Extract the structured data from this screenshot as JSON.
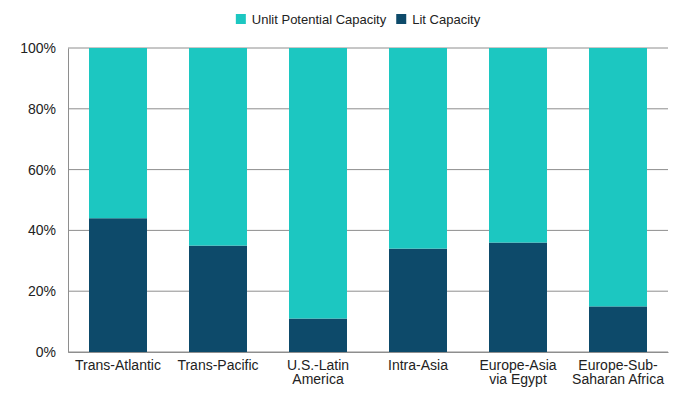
{
  "chart_data": {
    "type": "bar",
    "stacked": true,
    "grid": true,
    "legend": "top",
    "categories": [
      "Trans-Atlantic",
      "Trans-Pacific",
      "U.S.-Latin America",
      "Intra-Asia",
      "Europe-Asia via Egypt",
      "Europe-Sub-Saharan Africa"
    ],
    "series": [
      {
        "name": "Lit Capacity",
        "color": "#0d4a6a",
        "values": [
          44,
          35,
          11,
          34,
          36,
          15
        ]
      },
      {
        "name": "Unlit Potential Capacity",
        "color": "#1cc7c1",
        "values": [
          56,
          65,
          89,
          66,
          64,
          85
        ]
      }
    ],
    "ylim": [
      0,
      100
    ],
    "yticks": [
      {
        "value": 0,
        "label": "0%"
      },
      {
        "value": 20,
        "label": "20%"
      },
      {
        "value": 40,
        "label": "40%"
      },
      {
        "value": 60,
        "label": "60%"
      },
      {
        "value": 80,
        "label": "80%"
      },
      {
        "value": 100,
        "label": "100%"
      }
    ]
  }
}
